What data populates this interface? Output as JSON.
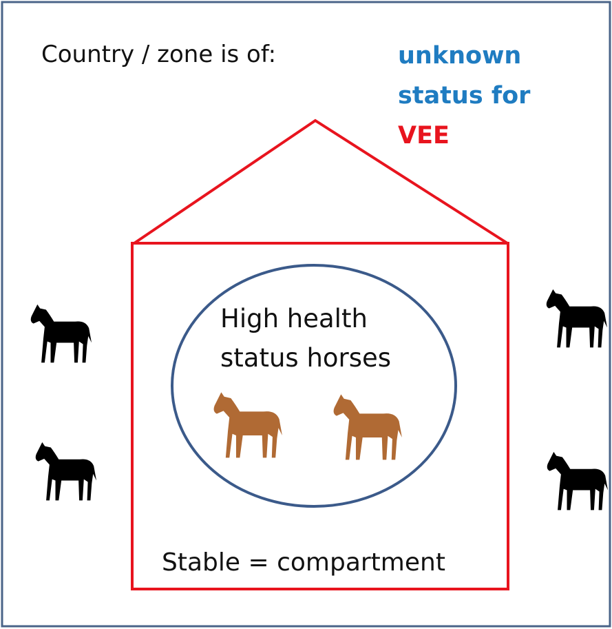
{
  "header": {
    "title": "Country / zone is of:",
    "status": [
      "unknown",
      "status for",
      "VEE"
    ]
  },
  "compartment": {
    "label": "Stable = compartment",
    "group": [
      "High health",
      "status horses"
    ]
  }
}
